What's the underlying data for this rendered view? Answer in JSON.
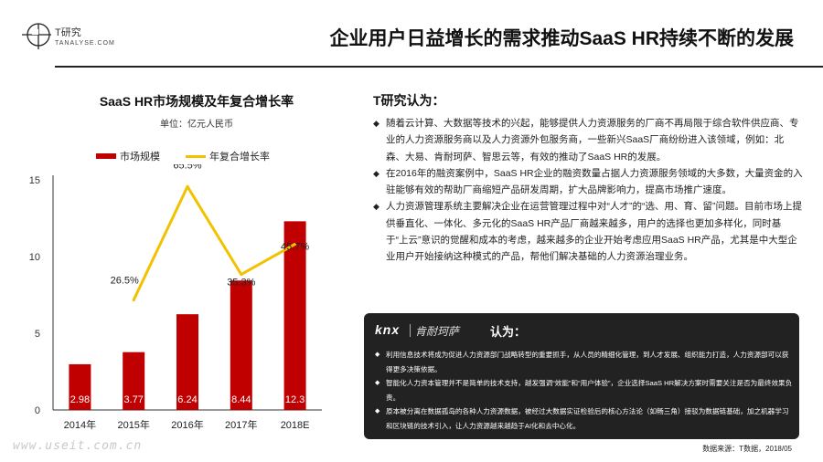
{
  "header": {
    "logo_text": "T研究",
    "logo_sub": "TANALYSE.COM",
    "title": "企业用户日益增长的需求推动SaaS HR持续不断的发展"
  },
  "chart_data": {
    "type": "bar",
    "title": "SaaS HR市场规模及年复合增长率",
    "unit": "单位：亿元人民币",
    "categories": [
      "2014年",
      "2015年",
      "2016年",
      "2017年",
      "2018E"
    ],
    "yticks": [
      "0",
      "5",
      "10",
      "15"
    ],
    "ylim": [
      0,
      15
    ],
    "series": [
      {
        "name": "市场规模",
        "type": "bar",
        "color": "#c00000",
        "values": [
          2.98,
          3.77,
          6.24,
          8.44,
          12.3
        ],
        "labels": [
          "2.98",
          "3.77",
          "6.24",
          "8.44",
          "12.3"
        ]
      },
      {
        "name": "年复合增长率",
        "type": "line",
        "color": "#f2c200",
        "values": [
          null,
          26.5,
          65.5,
          35.3,
          45.7
        ],
        "labels": [
          "",
          "26.5%",
          "65.5%",
          "35.3%",
          "45.7%"
        ]
      }
    ],
    "legend": "top-left",
    "grid": false
  },
  "analysis": {
    "heading": "T研究认为：",
    "points": [
      "随着云计算、大数据等技术的兴起，能够提供人力资源服务的厂商不再局限于综合软件供应商、专业的人力资源服务商以及人力资源外包服务商，一些新兴SaaS厂商纷纷进入该领域，例如：北森、大易、肯耐珂萨、智思云等，有效的推动了SaaS HR的发展。",
      "在2016年的融资案例中，SaaS HR企业的融资数量占据人力资源服务领域的大多数，大量资金的入驻能够有效的帮助厂商缩短产品研发周期，扩大品牌影响力，提高市场推广速度。",
      "人力资源管理系统主要解决企业在运营管理过程中对“人才”的“选、用、育、留”问题。目前市场上提供垂直化、一体化、多元化的SaaS HR产品厂商越来越多，用户的选择也更加多样化，同时基于“上云”意识的觉醒和成本的考虑，越来越多的企业开始考虑应用SaaS HR产品，尤其是中大型企业用户开始接纳这种模式的产品，帮他们解决基础的人力资源治理业务。"
    ]
  },
  "knx": {
    "logo": "knx",
    "logo_cn": "肯耐珂萨",
    "say": "认为：",
    "points": [
      "利用信息技术将成为促进人力资源部门战略转型的重要抓手，从人员的精细化管理，到人才发展、组织能力打造，人力资源部可以获得更多决策依据。",
      "智能化人力资本管理并不是简单的技术支持，越发强调“效能”和“用户体验”，企业选择SaaS HR解决方案时需要关注是否为最终效果负责。",
      "原本被分离在数据孤岛的各种人力资源数据，被经过大数据实证检验后的核心方法论（如畅三角）接驳为数据链基础，加之机器学习和区块链的技术引入，让人力资源越来越趋于AI化和去中心化。"
    ]
  },
  "source": "数据来源：T数据，2018/05",
  "watermark": "www.useit.com.cn"
}
